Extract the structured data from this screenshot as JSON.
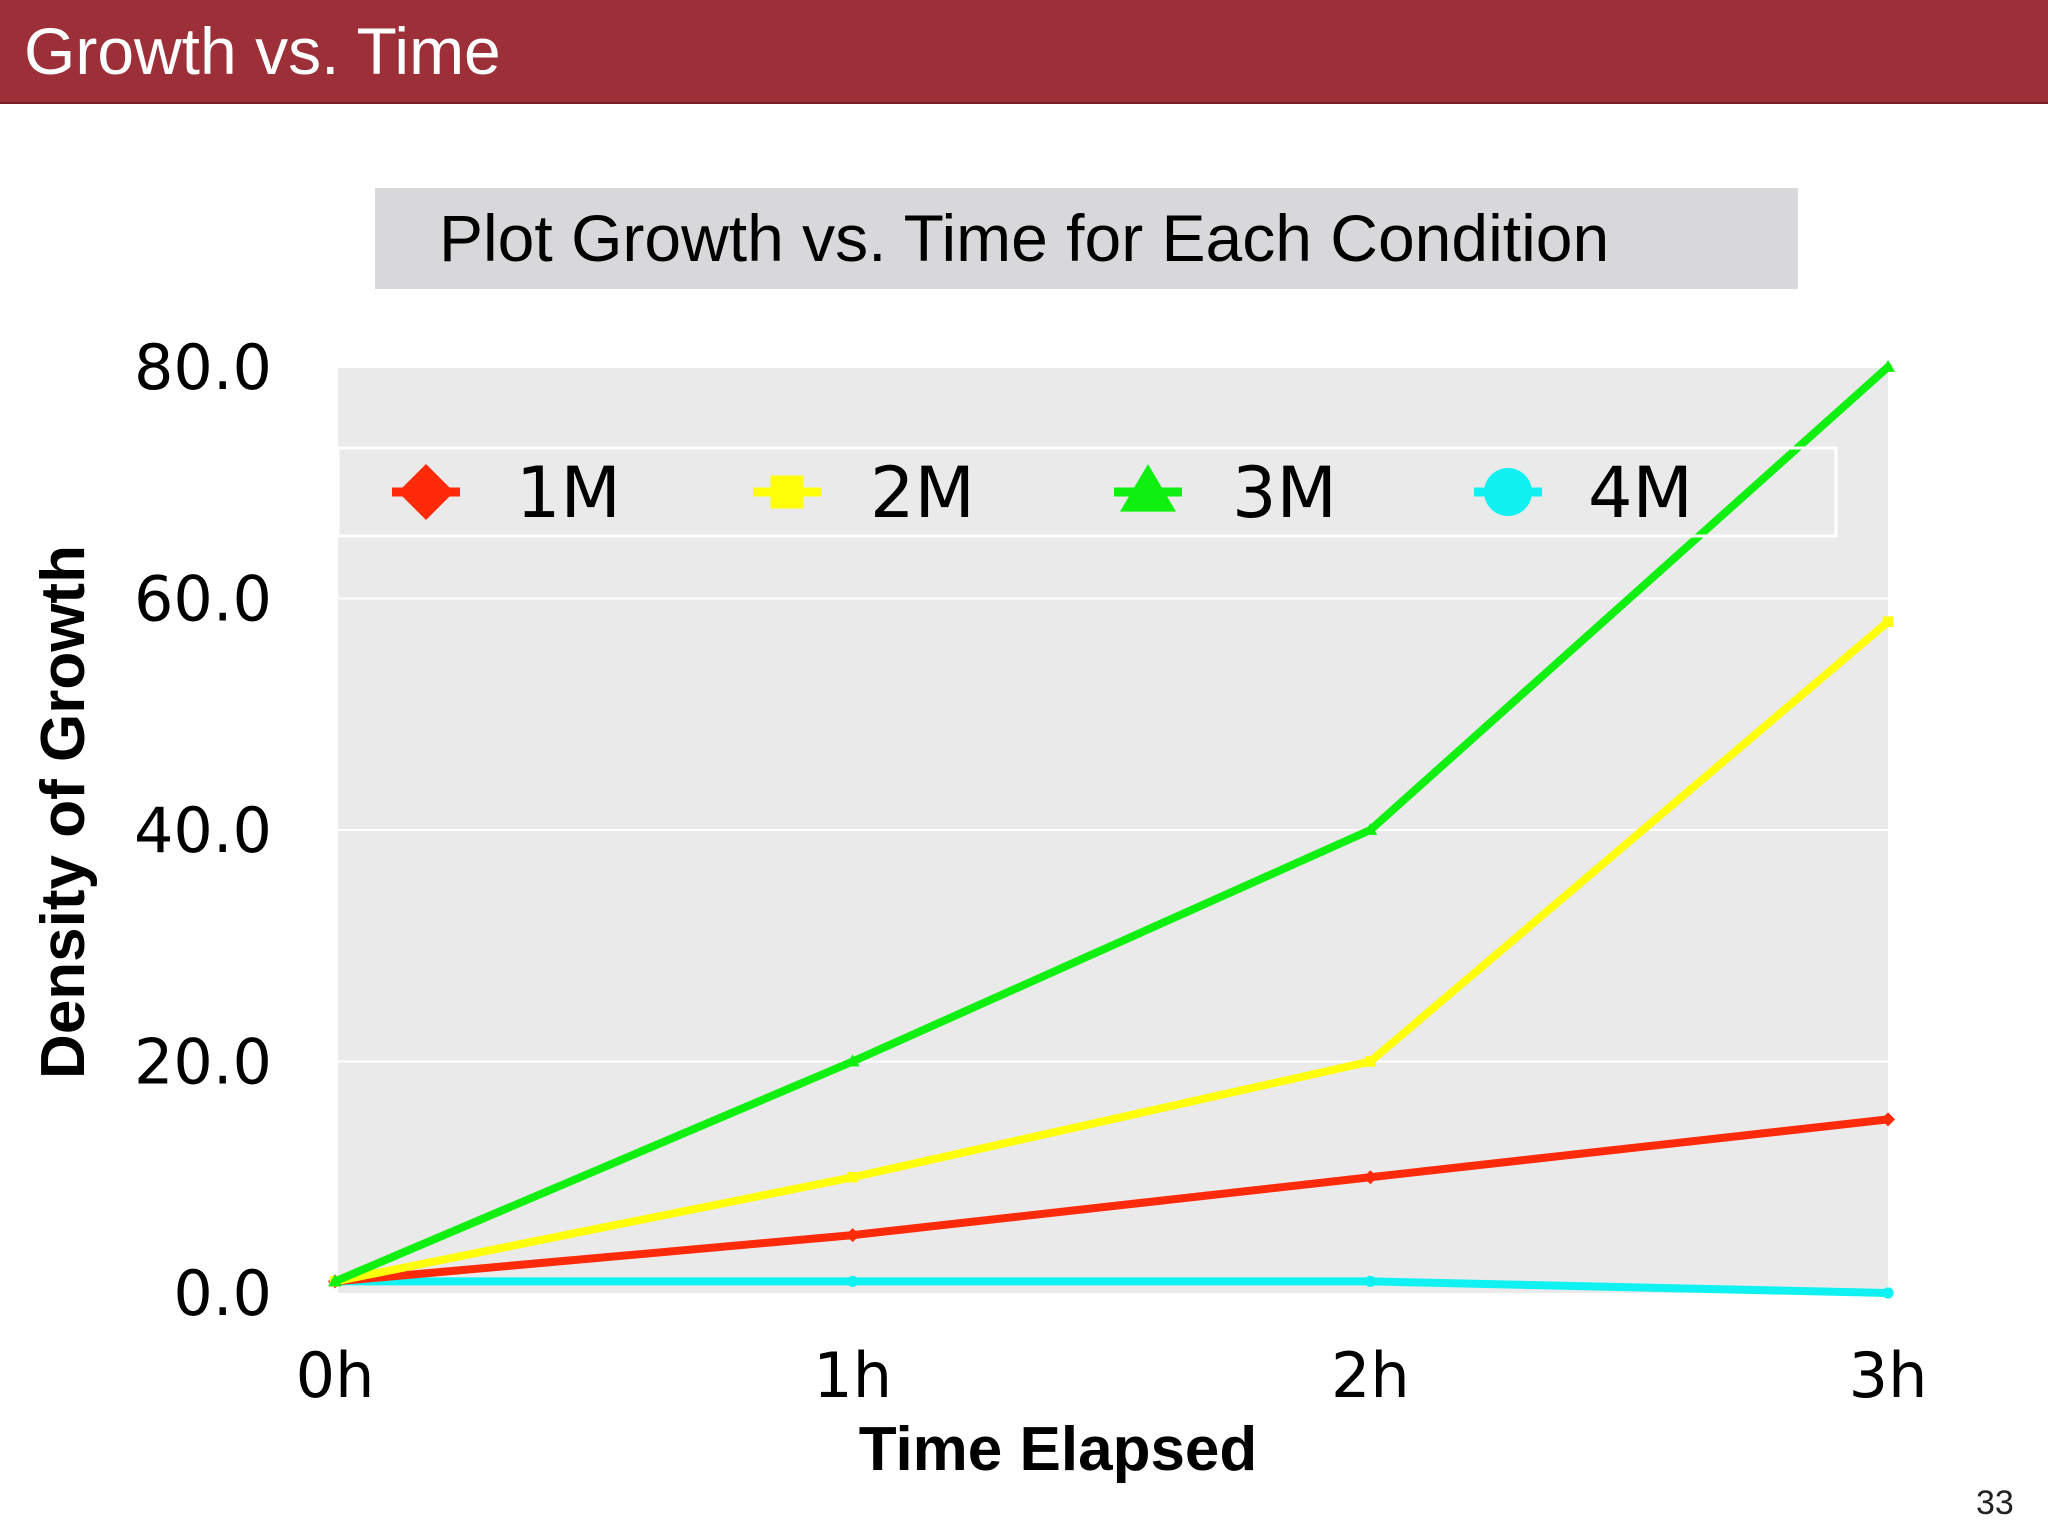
{
  "slide": {
    "title": "Growth vs. Time",
    "page_number": "33"
  },
  "colors": {
    "header_bg": "#9c2f38",
    "plot_bg": "#ebeaeb",
    "title_box_bg": "#d8d7d9"
  },
  "chart_data": {
    "type": "line",
    "title": "Plot Growth vs. Time for Each Condition",
    "xlabel": "Time Elapsed",
    "ylabel": "Density of Growth",
    "categories": [
      "0h",
      "1h",
      "2h",
      "3h"
    ],
    "ylim": [
      0,
      80
    ],
    "yticks": [
      "0.0",
      "20.0",
      "40.0",
      "60.0",
      "80.0"
    ],
    "ytick_values": [
      0,
      20,
      40,
      60,
      80
    ],
    "grid": true,
    "legend_position": "top",
    "series": [
      {
        "name": "1M",
        "values": [
          1,
          5,
          10,
          15
        ],
        "color": "#ff2a0a",
        "marker": "diamond"
      },
      {
        "name": "2M",
        "values": [
          1,
          10,
          20,
          58
        ],
        "color": "#ffff0a",
        "marker": "square"
      },
      {
        "name": "3M",
        "values": [
          1,
          20,
          40,
          80
        ],
        "color": "#10f010",
        "marker": "triangle"
      },
      {
        "name": "4M",
        "values": [
          1,
          1,
          1,
          0
        ],
        "color": "#10f2f2",
        "marker": "circle"
      }
    ]
  }
}
